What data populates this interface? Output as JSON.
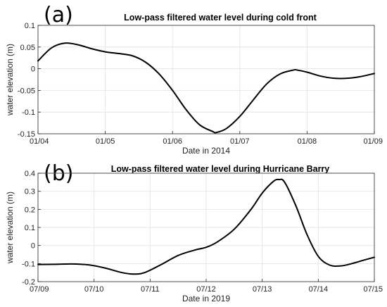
{
  "chart_data": [
    {
      "type": "line",
      "panel_label": "(a)",
      "title": "Low-pass filtered water level during cold front",
      "xlabel": "Date in 2014",
      "ylabel": "water elevation (m)",
      "x_ticks": [
        "01/04",
        "01/05",
        "01/06",
        "01/07",
        "01/08",
        "01/09"
      ],
      "xlim": [
        0,
        5
      ],
      "ylim": [
        -0.15,
        0.1
      ],
      "y_ticks": [
        0.1,
        0.05,
        0,
        -0.05,
        -0.1,
        -0.15
      ],
      "y_tick_labels": [
        "0.1",
        "0.05",
        "0",
        "-0.05",
        "-0.1",
        "-0.15"
      ],
      "grid": true,
      "x": [
        0.0,
        0.2,
        0.4,
        0.6,
        0.8,
        1.0,
        1.2,
        1.4,
        1.6,
        1.8,
        2.0,
        2.2,
        2.4,
        2.6,
        2.65,
        2.8,
        3.0,
        3.2,
        3.4,
        3.6,
        3.8,
        3.85,
        4.0,
        4.2,
        4.4,
        4.6,
        4.8,
        5.0
      ],
      "y": [
        0.018,
        0.048,
        0.059,
        0.055,
        0.046,
        0.039,
        0.035,
        0.03,
        0.015,
        -0.012,
        -0.05,
        -0.094,
        -0.129,
        -0.145,
        -0.147,
        -0.138,
        -0.11,
        -0.072,
        -0.035,
        -0.012,
        -0.003,
        -0.003,
        -0.008,
        -0.017,
        -0.022,
        -0.022,
        -0.018,
        -0.011
      ]
    },
    {
      "type": "line",
      "panel_label": "(b)",
      "title": "Low-pass filtered water level during Hurricane Barry",
      "xlabel": "Date in 2019",
      "ylabel": "water elevation (m)",
      "x_ticks": [
        "07/09",
        "07/10",
        "07/11",
        "07/12",
        "07/13",
        "07/14",
        "07/15"
      ],
      "xlim": [
        0,
        6
      ],
      "ylim": [
        -0.2,
        0.4
      ],
      "y_ticks": [
        0.4,
        0.3,
        0.2,
        0.1,
        0,
        -0.1,
        -0.2
      ],
      "y_tick_labels": [
        "0.4",
        "0.3",
        "0.2",
        "0.1",
        "0",
        "-0.1",
        "-0.2"
      ],
      "grid": true,
      "x": [
        0.0,
        0.3,
        0.6,
        0.9,
        1.2,
        1.5,
        1.7,
        1.9,
        2.2,
        2.5,
        2.8,
        3.0,
        3.2,
        3.5,
        3.8,
        4.0,
        4.2,
        4.3,
        4.4,
        4.6,
        4.8,
        5.0,
        5.2,
        5.4,
        5.6,
        5.8,
        6.0
      ],
      "y": [
        -0.105,
        -0.104,
        -0.102,
        -0.107,
        -0.125,
        -0.15,
        -0.158,
        -0.15,
        -0.105,
        -0.055,
        -0.025,
        -0.01,
        0.02,
        0.09,
        0.2,
        0.29,
        0.355,
        0.365,
        0.35,
        0.22,
        0.06,
        -0.06,
        -0.108,
        -0.113,
        -0.1,
        -0.082,
        -0.065
      ]
    }
  ]
}
